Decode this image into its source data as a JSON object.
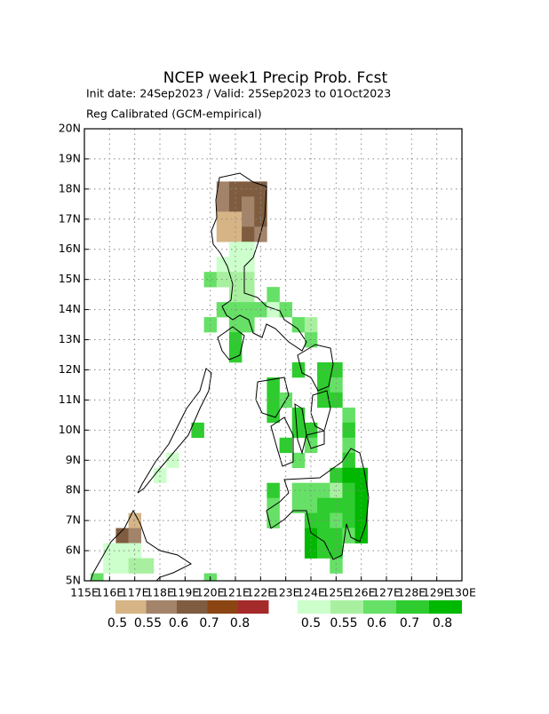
{
  "chart_data": {
    "type": "grid-map",
    "title": "NCEP week1 Precip Prob. Fcst",
    "subtitle": "Init date: 24Sep2023 / Valid: 25Sep2023 to 01Oct2023",
    "note": "Reg Calibrated (GCM-empirical)",
    "xlim": [
      115,
      130
    ],
    "ylim": [
      5,
      20
    ],
    "xticks": [
      {
        "value": 115,
        "label": "115E"
      },
      {
        "value": 116,
        "label": "116E"
      },
      {
        "value": 117,
        "label": "117E"
      },
      {
        "value": 118,
        "label": "118E"
      },
      {
        "value": 119,
        "label": "119E"
      },
      {
        "value": 120,
        "label": "120E"
      },
      {
        "value": 121,
        "label": "121E"
      },
      {
        "value": 122,
        "label": "122E"
      },
      {
        "value": 123,
        "label": "123E"
      },
      {
        "value": 124,
        "label": "124E"
      },
      {
        "value": 125,
        "label": "125E"
      },
      {
        "value": 126,
        "label": "126E"
      },
      {
        "value": 127,
        "label": "127E"
      },
      {
        "value": 128,
        "label": "128E"
      },
      {
        "value": 129,
        "label": "129E"
      },
      {
        "value": 130,
        "label": "130E"
      }
    ],
    "yticks": [
      {
        "value": 5,
        "label": "5N"
      },
      {
        "value": 6,
        "label": "6N"
      },
      {
        "value": 7,
        "label": "7N"
      },
      {
        "value": 8,
        "label": "8N"
      },
      {
        "value": 9,
        "label": "9N"
      },
      {
        "value": 10,
        "label": "10N"
      },
      {
        "value": 11,
        "label": "11N"
      },
      {
        "value": 12,
        "label": "12N"
      },
      {
        "value": 13,
        "label": "13N"
      },
      {
        "value": 14,
        "label": "14N"
      },
      {
        "value": 15,
        "label": "15N"
      },
      {
        "value": 16,
        "label": "16N"
      },
      {
        "value": 17,
        "label": "17N"
      },
      {
        "value": 18,
        "label": "18N"
      },
      {
        "value": 19,
        "label": "19N"
      },
      {
        "value": 20,
        "label": "20N"
      }
    ],
    "grid": true,
    "below": {
      "levels": [
        0.5,
        0.55,
        0.6,
        0.7,
        0.8
      ],
      "colors": [
        "#d6b486",
        "#a3846a",
        "#7f5c3f",
        "#8b4513",
        "#a52a2a"
      ],
      "lon": [
        120.5,
        121,
        121.5,
        122,
        120.5,
        121,
        121.5,
        122,
        120.5,
        121,
        121.5,
        122,
        120.5,
        121,
        121.5,
        122,
        117,
        116.5,
        117
      ],
      "lat": [
        18,
        18,
        18,
        18,
        17.5,
        17.5,
        17.5,
        17.5,
        17,
        17,
        17,
        17,
        16.5,
        16.5,
        16.5,
        16.5,
        7,
        6.5,
        6.5
      ],
      "values": [
        0.55,
        0.6,
        0.6,
        0.6,
        0.55,
        0.6,
        0.55,
        0.6,
        0.5,
        0.5,
        0.55,
        0.6,
        0.5,
        0.5,
        0.6,
        0.55,
        0.5,
        0.6,
        0.55
      ]
    },
    "above": {
      "levels": [
        0.5,
        0.55,
        0.6,
        0.7,
        0.8
      ],
      "colors": [
        "#ccffcc",
        "#a8f0a0",
        "#66e066",
        "#2ecc2e",
        "#00b800"
      ],
      "lon": [
        121,
        121.5,
        120.5,
        121,
        121.5,
        120,
        120.5,
        121,
        121.5,
        121,
        121.5,
        122.5,
        120.5,
        121,
        121.5,
        122,
        122.5,
        123,
        120,
        121,
        121.5,
        123.5,
        124,
        121,
        124,
        121,
        123.5,
        124.5,
        125,
        122.5,
        124.5,
        125,
        122.5,
        123,
        124.5,
        125,
        122.5,
        123.5,
        125.5,
        119.5,
        123.5,
        124,
        125.5,
        123,
        124,
        125.5,
        118.5,
        123.5,
        125.5,
        118,
        125,
        125.5,
        126,
        122.5,
        123.5,
        124,
        124.5,
        125,
        125.5,
        126,
        122.5,
        123.5,
        124,
        124.5,
        125,
        125.5,
        126,
        122.5,
        124,
        124.5,
        125,
        125.5,
        126,
        124,
        124.5,
        125,
        125.5,
        126,
        124,
        124.5,
        125,
        125,
        116,
        116.5,
        117,
        116,
        116.5,
        117,
        117.5,
        115.5,
        120
      ],
      "lat": [
        16,
        16,
        15.5,
        15.5,
        15.5,
        15,
        15,
        15,
        15,
        14.5,
        14.5,
        14.5,
        14,
        14,
        14,
        14,
        14,
        14,
        13.5,
        13.5,
        13.5,
        13.5,
        13.5,
        13,
        13,
        12.5,
        12,
        12,
        12,
        11.5,
        11.5,
        11.5,
        11,
        11,
        11,
        11,
        10.5,
        10.5,
        10.5,
        10,
        10,
        10,
        10,
        9.5,
        9.5,
        9.5,
        9,
        9,
        9,
        8.5,
        8.5,
        8.5,
        8.5,
        8,
        8,
        8,
        8,
        8,
        8,
        8,
        7.5,
        7.5,
        7.5,
        7.5,
        7.5,
        7.5,
        7.5,
        7,
        7,
        7,
        7,
        7,
        7,
        6.5,
        6.5,
        6.5,
        6.5,
        6.5,
        6,
        6,
        6,
        5.5,
        6,
        6,
        6,
        5.5,
        5.5,
        5.5,
        5.5,
        5,
        5
      ],
      "values": [
        0.5,
        0.5,
        0.5,
        0.5,
        0.5,
        0.6,
        0.55,
        0.55,
        0.55,
        0.55,
        0.55,
        0.6,
        0.6,
        0.6,
        0.6,
        0.6,
        0.5,
        0.6,
        0.6,
        0.6,
        0.6,
        0.6,
        0.55,
        0.7,
        0.6,
        0.7,
        0.7,
        0.7,
        0.7,
        0.7,
        0.7,
        0.6,
        0.7,
        0.6,
        0.7,
        0.7,
        0.7,
        0.7,
        0.6,
        0.7,
        0.7,
        0.7,
        0.7,
        0.7,
        0.6,
        0.6,
        0.5,
        0.6,
        0.7,
        0.5,
        0.7,
        0.8,
        0.8,
        0.7,
        0.6,
        0.6,
        0.6,
        0.55,
        0.7,
        0.8,
        0.6,
        0.6,
        0.6,
        0.7,
        0.7,
        0.7,
        0.8,
        0.6,
        0.7,
        0.7,
        0.6,
        0.7,
        0.8,
        0.8,
        0.7,
        0.7,
        0.6,
        0.8,
        0.8,
        0.7,
        0.7,
        0.6,
        0.5,
        0.5,
        0.5,
        0.5,
        0.5,
        0.55,
        0.55,
        0.6,
        0.6
      ]
    }
  }
}
